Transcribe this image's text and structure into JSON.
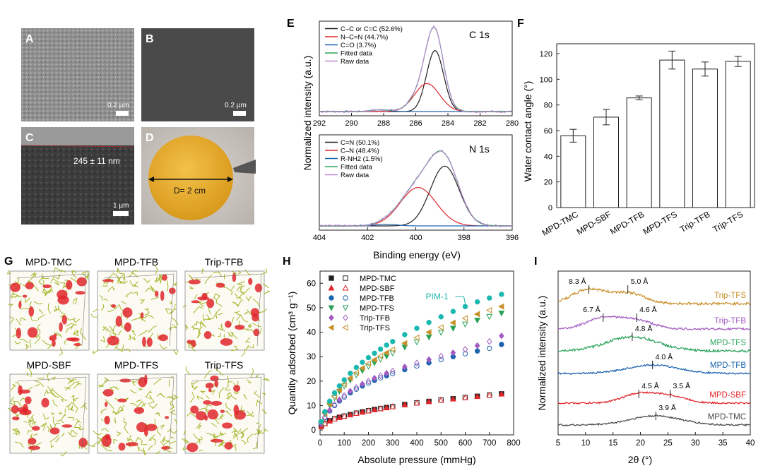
{
  "panel_letters": {
    "a": "A",
    "b": "B",
    "c": "C",
    "d": "D",
    "e": "E",
    "f": "F",
    "g": "G",
    "h": "H",
    "i": "I"
  },
  "micrographs": {
    "a_scale": "0.2 µm",
    "b_scale": "0.2 µm",
    "c_scale": "1 µm",
    "c_thickness": "245 ± 11 nm",
    "d_diameter": "D= 2 cm"
  },
  "structures": {
    "labels": [
      "MPD-TMC",
      "MPD-TFB",
      "Trip-TFB",
      "MPD-SBF",
      "MPD-TFS",
      "Trip-TFS"
    ]
  },
  "colors": {
    "red": "#e0262b",
    "black": "#231f20",
    "blue": "#1c63b0",
    "green": "#2aa35a",
    "purple": "#a35cc0",
    "gold": "#c8902a",
    "teal": "#1ab8b0",
    "gray": "#4a4a4a",
    "light_purple": "#b98ad1"
  },
  "chart_data": [
    {
      "id": "E-top",
      "type": "line",
      "title": "C 1s",
      "xlabel": "",
      "ylabel": "Normalized intensity (a.u.)",
      "xlim": [
        292,
        280
      ],
      "x_ticks": [
        "292",
        "290",
        "288",
        "286",
        "284",
        "282",
        "280"
      ],
      "legend": [
        "C–C or C=C (52.6%)",
        "N–C=N (44.7%)",
        "C=O (3.7%)",
        "Fitted data",
        "Raw data"
      ],
      "series": [
        {
          "name": "C–C or C=C (52.6%)",
          "shape": "peak",
          "center": 284.8,
          "height": 0.72,
          "width": 0.75
        },
        {
          "name": "N–C=N (44.7%)",
          "shape": "peak",
          "center": 285.3,
          "height": 0.33,
          "width": 1.1
        },
        {
          "name": "C=O (3.7%)",
          "shape": "peak",
          "center": 288.2,
          "height": 0.02,
          "width": 0.8
        },
        {
          "name": "Fitted data",
          "shape": "sum"
        },
        {
          "name": "Raw data",
          "shape": "sum_noisy"
        }
      ]
    },
    {
      "id": "E-bottom",
      "type": "line",
      "title": "N 1s",
      "xlabel": "Binding energy (eV)",
      "ylabel": "Normalized intensity (a.u.)",
      "xlim": [
        404,
        396
      ],
      "x_ticks": [
        "404",
        "402",
        "400",
        "398",
        "396"
      ],
      "legend": [
        "C=N (50.1%)",
        "C–N (48.4%)",
        "R-NH2 (1.5%)",
        "Fitted data",
        "Raw data"
      ],
      "series": [
        {
          "name": "C=N (50.1%)",
          "shape": "peak",
          "center": 398.8,
          "height": 0.7,
          "width": 0.85
        },
        {
          "name": "C–N (48.4%)",
          "shape": "peak",
          "center": 399.9,
          "height": 0.45,
          "width": 1.05
        },
        {
          "name": "R-NH2 (1.5%)",
          "shape": "peak",
          "center": 401.2,
          "height": 0.02,
          "width": 0.6
        },
        {
          "name": "Fitted data",
          "shape": "sum"
        },
        {
          "name": "Raw data",
          "shape": "sum_noisy"
        }
      ]
    },
    {
      "id": "F",
      "type": "bar",
      "xlabel": "",
      "ylabel": "Water contact angle (°)",
      "ylim": [
        0,
        120
      ],
      "y_ticks": [
        0,
        20,
        40,
        60,
        80,
        100,
        120
      ],
      "categories": [
        "MPD-TMC",
        "MPD-SBF",
        "MPD-TFB",
        "MPD-TFS",
        "Trip-TFB",
        "Trip-TFS"
      ],
      "values": [
        56,
        70.5,
        85.5,
        115,
        108,
        114
      ],
      "errors": [
        5,
        6,
        1.5,
        7,
        5.5,
        4
      ]
    },
    {
      "id": "H",
      "type": "scatter",
      "xlabel": "Absolute pressure (mmHg)",
      "ylabel": "Quantity adsorbed (cm³ g⁻¹)",
      "xlim": [
        0,
        800
      ],
      "ylim": [
        -2,
        65
      ],
      "x_ticks": [
        0,
        100,
        200,
        300,
        400,
        500,
        600,
        700,
        800
      ],
      "y_ticks": [
        0,
        10,
        20,
        30,
        40,
        50,
        60
      ],
      "annotation": "PIM-1",
      "x": [
        5,
        20,
        40,
        60,
        80,
        100,
        125,
        150,
        175,
        200,
        225,
        250,
        275,
        300,
        350,
        400,
        450,
        500,
        550,
        600,
        650,
        700,
        750
      ],
      "series": [
        {
          "name": "MPD-TMC",
          "marker": "square",
          "values": [
            1.5,
            2.7,
            3.8,
            4.6,
            5.2,
            5.7,
            6.3,
            6.9,
            7.4,
            7.9,
            8.4,
            8.8,
            9.2,
            9.6,
            10.4,
            11.1,
            11.7,
            12.3,
            12.8,
            13.3,
            13.8,
            14.3,
            14.8
          ]
        },
        {
          "name": "MPD-SBF",
          "marker": "triangle-up",
          "values": [
            1.4,
            2.6,
            3.7,
            4.5,
            5.1,
            5.6,
            6.2,
            6.8,
            7.3,
            7.8,
            8.3,
            8.7,
            9.1,
            9.5,
            10.3,
            11.0,
            11.6,
            12.2,
            12.7,
            13.2,
            13.7,
            14.2,
            14.7
          ]
        },
        {
          "name": "MPD-TFB",
          "marker": "circle",
          "values": [
            2.5,
            5.0,
            7.8,
            10.0,
            11.9,
            13.5,
            15.2,
            16.7,
            18.0,
            19.2,
            20.3,
            21.3,
            22.2,
            23.1,
            24.7,
            26.2,
            27.5,
            28.8,
            30.0,
            31.2,
            32.3,
            33.4,
            35.0
          ]
        },
        {
          "name": "MPD-TFS",
          "marker": "triangle-down",
          "values": [
            3.0,
            6.5,
            10.2,
            13.2,
            15.8,
            18.0,
            20.4,
            22.5,
            24.3,
            26.0,
            27.5,
            28.9,
            30.2,
            31.5,
            33.9,
            36.0,
            38.0,
            39.9,
            41.6,
            43.3,
            44.9,
            46.4,
            47.8
          ]
        },
        {
          "name": "Trip-TFB",
          "marker": "diamond",
          "values": [
            2.6,
            5.2,
            8.1,
            10.4,
            12.4,
            14.1,
            15.9,
            17.4,
            18.8,
            20.0,
            21.2,
            22.2,
            23.2,
            24.1,
            25.8,
            27.4,
            28.8,
            30.2,
            31.6,
            33.0,
            34.5,
            36.2,
            38.5
          ]
        },
        {
          "name": "Trip-TFS",
          "marker": "triangle-left",
          "values": [
            3.1,
            6.8,
            10.6,
            13.7,
            16.4,
            18.7,
            21.2,
            23.4,
            25.3,
            27.1,
            28.7,
            30.2,
            31.6,
            32.9,
            35.5,
            37.8,
            40.0,
            42.0,
            43.9,
            45.7,
            47.4,
            49.0,
            50.5
          ]
        },
        {
          "name": "PIM-1",
          "marker": "circle",
          "values": [
            3.4,
            7.5,
            11.8,
            15.2,
            18.0,
            20.5,
            23.2,
            25.6,
            27.7,
            29.6,
            31.4,
            33.1,
            34.7,
            36.2,
            39.0,
            41.6,
            44.0,
            46.3,
            48.5,
            50.5,
            52.4,
            54.0,
            55.5
          ]
        }
      ]
    },
    {
      "id": "I",
      "type": "line",
      "xlabel": "2θ (°)",
      "ylabel": "Normalized intensity (a.u.)",
      "xlim": [
        5,
        40
      ],
      "x_ticks": [
        5,
        10,
        15,
        20,
        25,
        30,
        35,
        40
      ],
      "series": [
        {
          "name": "Trip-TFS",
          "peaks": [
            {
              "d": "8.3 Å",
              "two_theta": 10.6
            },
            {
              "d": "5.0 Å",
              "two_theta": 17.7
            }
          ]
        },
        {
          "name": "Trip-TFB",
          "peaks": [
            {
              "d": "6.7 Å",
              "two_theta": 13.2
            },
            {
              "d": "4.6 Å",
              "two_theta": 19.3
            }
          ]
        },
        {
          "name": "MPD-TFS",
          "peaks": [
            {
              "d": "4.8 Å",
              "two_theta": 18.5
            }
          ]
        },
        {
          "name": "MPD-TFB",
          "peaks": [
            {
              "d": "4.0 Å",
              "two_theta": 22.2
            }
          ]
        },
        {
          "name": "MPD-SBF",
          "peaks": [
            {
              "d": "4.5 Å",
              "two_theta": 19.7
            },
            {
              "d": "3.5 Å",
              "two_theta": 25.4
            }
          ]
        },
        {
          "name": "MPD-TMC",
          "peaks": [
            {
              "d": "3.9 Å",
              "two_theta": 22.8
            }
          ]
        }
      ]
    }
  ]
}
